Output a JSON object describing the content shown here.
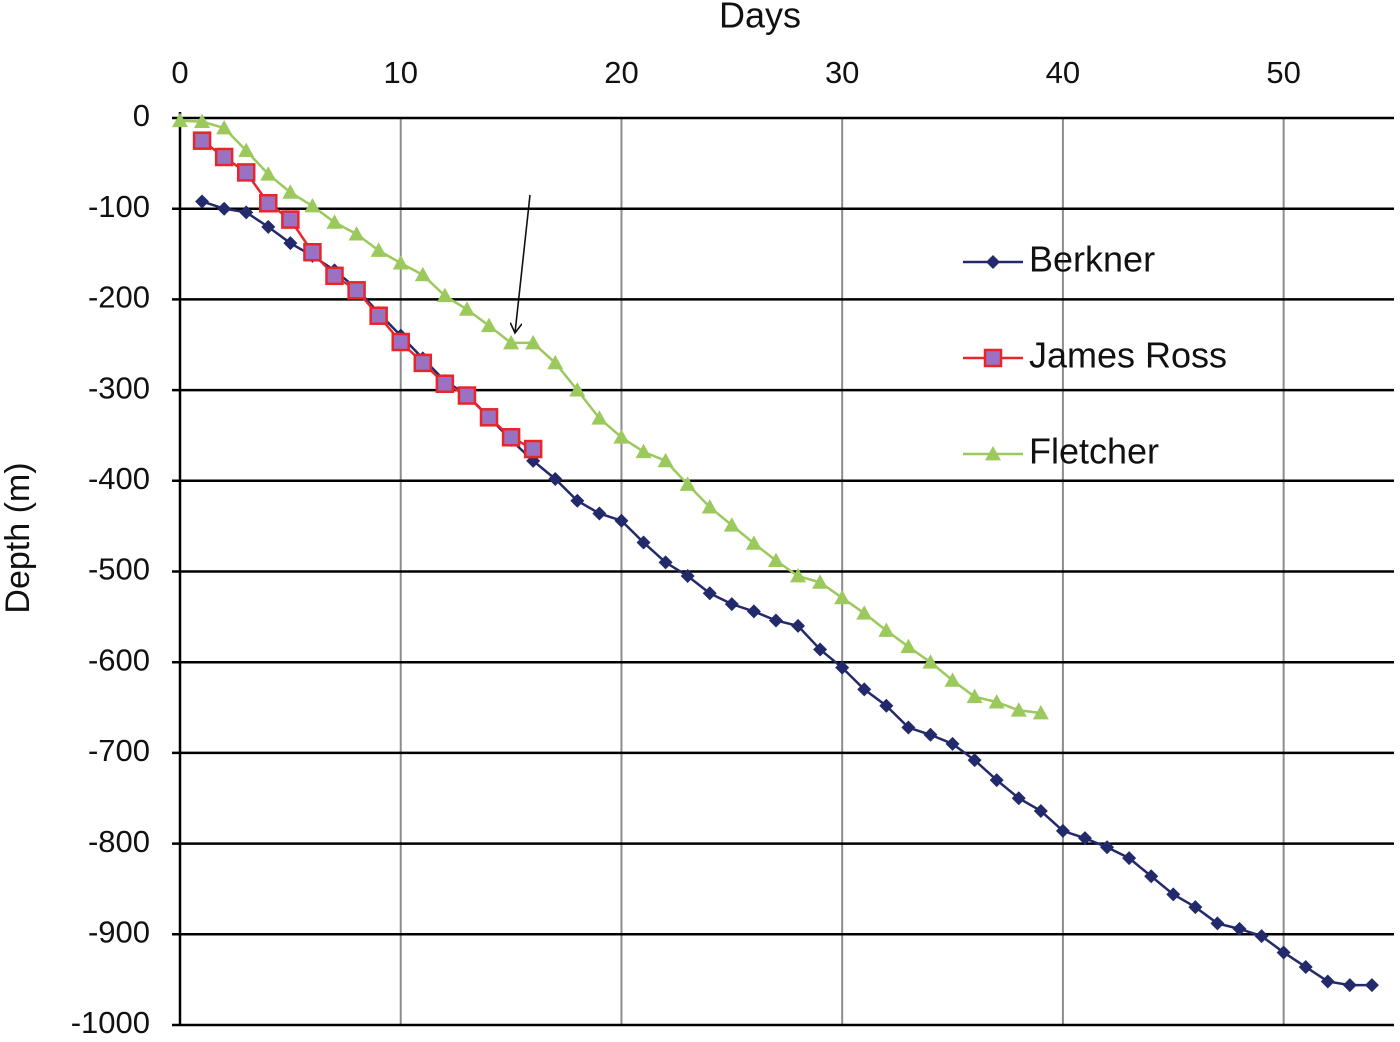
{
  "chart_data": {
    "type": "line",
    "x_label": "Days",
    "y_label": "Depth (m)",
    "xlim": [
      0,
      55
    ],
    "xticks": [
      0,
      10,
      20,
      30,
      40,
      50
    ],
    "ylim": [
      -1000,
      0
    ],
    "yticks": [
      0,
      -100,
      -200,
      -300,
      -400,
      -500,
      -600,
      -700,
      -800,
      -900,
      -1000
    ],
    "grid": true,
    "legend": "right",
    "series": [
      {
        "name": "Berkner",
        "color": "#232a6c",
        "marker": "diamond",
        "x": [
          1,
          2,
          3,
          4,
          5,
          6,
          7,
          8,
          9,
          10,
          11,
          12,
          13,
          14,
          15,
          16,
          17,
          18,
          19,
          20,
          21,
          22,
          23,
          24,
          25,
          26,
          27,
          28,
          29,
          30,
          31,
          32,
          33,
          34,
          35,
          36,
          37,
          38,
          39,
          40,
          41,
          42,
          43,
          44,
          45,
          46,
          47,
          48,
          49,
          50,
          51,
          52,
          53,
          54
        ],
        "values": [
          -92,
          -100,
          -104,
          -120,
          -138,
          -152,
          -168,
          -188,
          -215,
          -240,
          -265,
          -290,
          -305,
          -330,
          -355,
          -378,
          -398,
          -422,
          -436,
          -444,
          -468,
          -490,
          -505,
          -524,
          -536,
          -544,
          -554,
          -560,
          -586,
          -606,
          -630,
          -648,
          -672,
          -680,
          -690,
          -708,
          -730,
          -750,
          -764,
          -786,
          -794,
          -804,
          -816,
          -836,
          -856,
          -870,
          -888,
          -894,
          -902,
          -920,
          -936,
          -952,
          -956,
          -956
        ]
      },
      {
        "name": "James Ross",
        "color": "#e8262a",
        "marker": "square",
        "marker_fill": "#9b72c2",
        "x": [
          1,
          2,
          3,
          4,
          5,
          6,
          7,
          8,
          9,
          10,
          11,
          12,
          13,
          14,
          15,
          16
        ],
        "values": [
          -25,
          -43,
          -60,
          -94,
          -112,
          -148,
          -174,
          -190,
          -218,
          -247,
          -270,
          -293,
          -306,
          -330,
          -352,
          -365
        ]
      },
      {
        "name": "Fletcher",
        "color": "#9bc95b",
        "marker": "triangle",
        "x": [
          0,
          1,
          2,
          3,
          4,
          5,
          6,
          7,
          8,
          9,
          10,
          11,
          12,
          13,
          14,
          15,
          16,
          17,
          18,
          19,
          20,
          21,
          22,
          23,
          24,
          25,
          26,
          27,
          28,
          29,
          30,
          31,
          32,
          33,
          34,
          35,
          36,
          37,
          38,
          39
        ],
        "values": [
          -3,
          -4,
          -11,
          -36,
          -62,
          -82,
          -97,
          -115,
          -128,
          -146,
          -160,
          -173,
          -196,
          -211,
          -229,
          -248,
          -248,
          -270,
          -300,
          -331,
          -352,
          -368,
          -378,
          -404,
          -429,
          -449,
          -469,
          -488,
          -505,
          -512,
          -529,
          -546,
          -565,
          -583,
          -600,
          -620,
          -638,
          -644,
          -653,
          -656
        ]
      }
    ]
  }
}
